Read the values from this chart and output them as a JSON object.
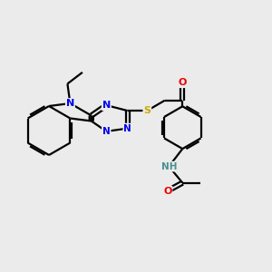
{
  "bg_color": "#ebebeb",
  "atom_colors": {
    "C": "#000000",
    "N": "#0000ee",
    "O": "#ee0000",
    "S": "#ccaa00",
    "H": "#4a9090"
  },
  "bond_color": "#000000",
  "line_width": 1.6,
  "figsize": [
    3.0,
    3.0
  ],
  "dpi": 100
}
